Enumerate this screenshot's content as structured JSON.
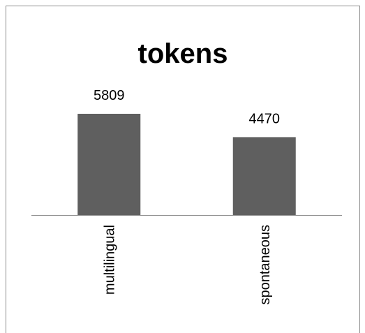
{
  "chart_data": {
    "type": "bar",
    "title": "tokens",
    "categories": [
      "multilingual",
      "spontaneous"
    ],
    "values": [
      5809,
      4470
    ],
    "color": "#5f5f5f"
  }
}
